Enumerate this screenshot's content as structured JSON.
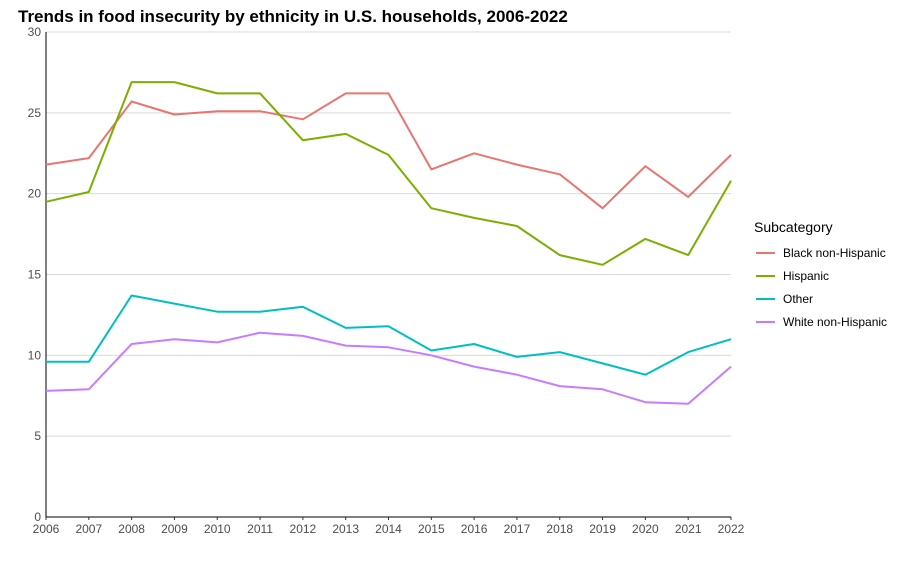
{
  "chart_data": {
    "type": "line",
    "title": "Trends in food insecurity by ethnicity in U.S. households, 2006-2022",
    "xlabel": "",
    "ylabel": "",
    "x": [
      2006,
      2007,
      2008,
      2009,
      2010,
      2011,
      2012,
      2013,
      2014,
      2015,
      2016,
      2017,
      2018,
      2019,
      2020,
      2021,
      2022
    ],
    "ylim": [
      0,
      30
    ],
    "yticks": [
      0,
      5,
      10,
      15,
      20,
      25,
      30
    ],
    "grid": "horizontal",
    "legend": {
      "title": "Subcategory",
      "placement": "right"
    },
    "series": [
      {
        "name": "Black non-Hispanic",
        "color": "#e8756f",
        "values": [
          21.8,
          22.2,
          25.7,
          24.9,
          25.1,
          25.1,
          24.6,
          26.2,
          26.2,
          21.5,
          22.5,
          21.8,
          21.2,
          19.1,
          21.7,
          19.8,
          22.4
        ]
      },
      {
        "name": "Hispanic",
        "color": "#7cae00",
        "values": [
          19.5,
          20.1,
          26.9,
          26.9,
          26.2,
          26.2,
          23.3,
          23.7,
          22.4,
          19.1,
          18.5,
          18.0,
          16.2,
          15.6,
          17.2,
          16.2,
          20.8
        ]
      },
      {
        "name": "Other",
        "color": "#00bfc4",
        "values": [
          9.6,
          9.6,
          13.7,
          13.2,
          12.7,
          12.7,
          13.0,
          11.7,
          11.8,
          10.3,
          10.7,
          9.9,
          10.2,
          9.5,
          8.8,
          10.2,
          11.0
        ]
      },
      {
        "name": "White non-Hispanic",
        "color": "#c77cff",
        "values": [
          7.8,
          7.9,
          10.7,
          11.0,
          10.8,
          11.4,
          11.2,
          10.6,
          10.5,
          10.0,
          9.3,
          8.8,
          8.1,
          7.9,
          7.1,
          7.0,
          9.3
        ]
      }
    ]
  }
}
